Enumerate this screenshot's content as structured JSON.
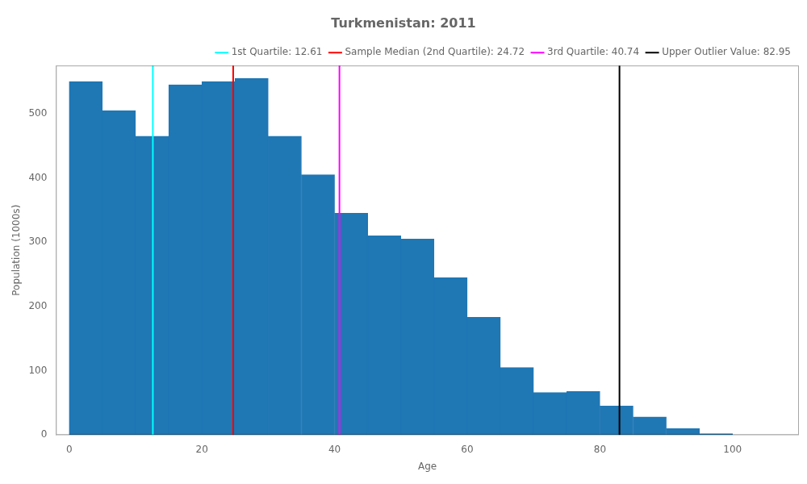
{
  "chart_data": {
    "type": "histogram",
    "title": "Turkmenistan: 2011",
    "xlabel": "Age",
    "ylabel": "Population (1000s)",
    "bins": [
      0,
      5,
      10,
      15,
      20,
      25,
      30,
      35,
      40,
      45,
      50,
      55,
      60,
      65,
      70,
      75,
      80,
      85,
      90,
      95,
      100,
      105
    ],
    "values": [
      550,
      505,
      465,
      545,
      550,
      555,
      465,
      405,
      345,
      310,
      305,
      245,
      183,
      105,
      66,
      68,
      45,
      28,
      10,
      2,
      0
    ],
    "color": "#1f77b4",
    "series": [
      {
        "name": "1st Quartile: 12.61",
        "color": "cyan",
        "type": "vline",
        "x": 12.61
      },
      {
        "name": "Sample Median (2nd Quartile): 24.72",
        "color": "red",
        "type": "vline",
        "x": 24.72
      },
      {
        "name": "3rd Quartile: 40.74",
        "color": "magenta",
        "type": "vline",
        "x": 40.74
      },
      {
        "name": "Upper Outlier Value: 82.95",
        "color": "black",
        "type": "vline",
        "x": 82.95
      }
    ],
    "xlim": [
      -2,
      110
    ],
    "ylim": [
      0,
      575
    ],
    "xticks": [
      0,
      20,
      40,
      60,
      80,
      100
    ],
    "yticks": [
      0,
      100,
      200,
      300,
      400,
      500
    ],
    "grid": false,
    "legend": "upper right"
  }
}
